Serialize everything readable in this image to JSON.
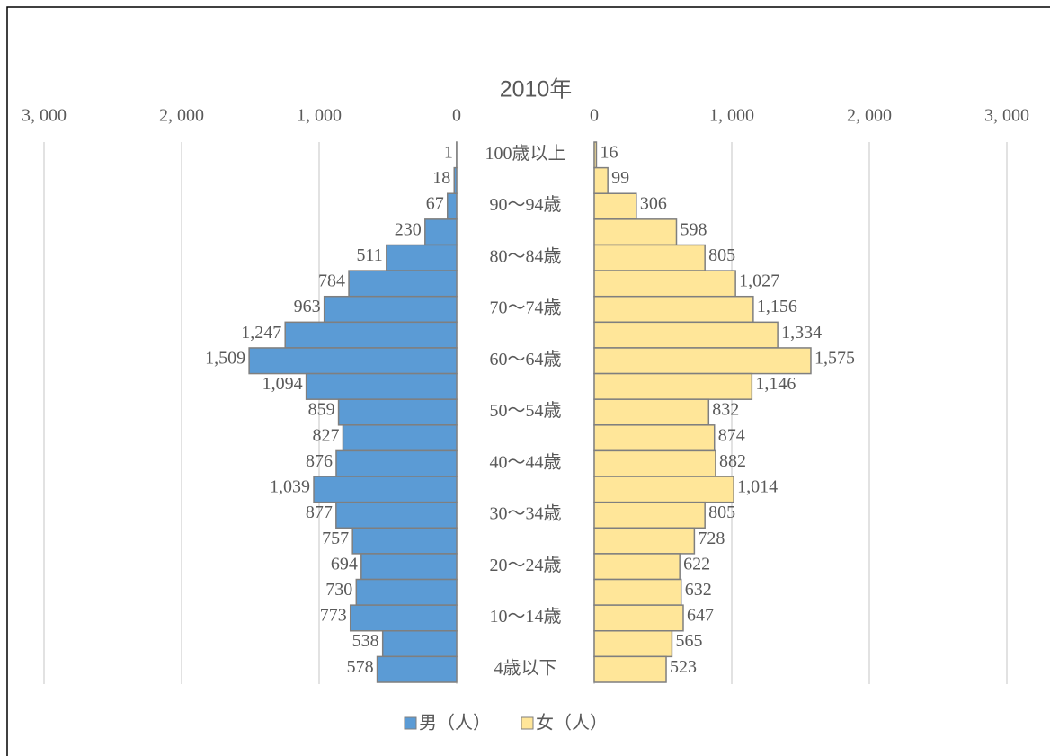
{
  "chart_data": {
    "type": "pyramid",
    "title": "2010年",
    "categories": [
      "100歳以上",
      null,
      "90〜94歳",
      null,
      "80〜84歳",
      null,
      "70〜74歳",
      null,
      "60〜64歳",
      null,
      "50〜54歳",
      null,
      "40〜44歳",
      null,
      "30〜34歳",
      null,
      "20〜24歳",
      null,
      "10〜14歳",
      null,
      "4歳以下"
    ],
    "series": [
      {
        "name": "男（人）",
        "color": "#5b9bd5",
        "side": "left",
        "values": [
          1,
          18,
          67,
          230,
          511,
          784,
          963,
          1247,
          1509,
          1094,
          859,
          827,
          876,
          1039,
          877,
          757,
          694,
          730,
          773,
          538,
          578
        ],
        "value_labels": [
          "1",
          "18",
          "67",
          "230",
          "511",
          "784",
          "963",
          "1,247",
          "1,509",
          "1,094",
          "859",
          "827",
          "876",
          "1,039",
          "877",
          "757",
          "694",
          "730",
          "773",
          "538",
          "578"
        ]
      },
      {
        "name": "女（人）",
        "color": "#ffe699",
        "side": "right",
        "values": [
          16,
          99,
          306,
          598,
          805,
          1027,
          1156,
          1334,
          1575,
          1146,
          832,
          874,
          882,
          1014,
          805,
          728,
          622,
          632,
          647,
          565,
          523
        ],
        "value_labels": [
          "16",
          "99",
          "306",
          "598",
          "805",
          "1,027",
          "1,156",
          "1,334",
          "1,575",
          "1,146",
          "832",
          "874",
          "882",
          "1,014",
          "805",
          "728",
          "622",
          "632",
          "647",
          "565",
          "523"
        ]
      }
    ],
    "xlim": [
      0,
      3000
    ],
    "xticks": [
      0,
      {
        "value": 1000,
        "label": "1, 000"
      },
      {
        "value": 2000,
        "label": "2, 000"
      },
      {
        "value": 3000,
        "label": "3, 000"
      }
    ],
    "grid": true,
    "legend": "bottom"
  }
}
